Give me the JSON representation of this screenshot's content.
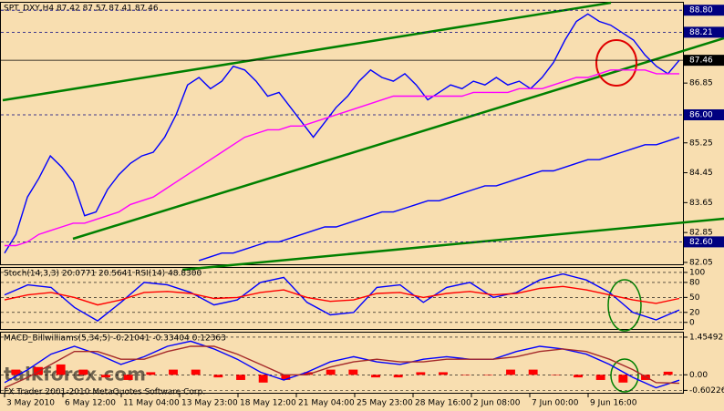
{
  "chart_data": [
    {
      "type": "line",
      "title": "SPT_DXY,H4  87.42 87.57 87.41 87.46",
      "ylim": [
        82.0,
        89.0
      ],
      "yticks": [
        86.85,
        85.25,
        84.45,
        83.65,
        82.85,
        82.05
      ],
      "levels": [
        {
          "value": 88.8,
          "label": "88.80"
        },
        {
          "value": 88.21,
          "label": "88.21"
        },
        {
          "value": 86.0,
          "label": "86.00"
        },
        {
          "value": 82.6,
          "label": "82.60"
        }
      ],
      "last": {
        "value": 87.46,
        "label": "87.46"
      },
      "series": [
        {
          "color": "#0000ff",
          "values": [
            82.3,
            82.8,
            83.8,
            84.3,
            84.9,
            84.6,
            84.2,
            83.3,
            83.4,
            84.0,
            84.4,
            84.7,
            84.9,
            85.0,
            85.4,
            86.0,
            86.8,
            87.0,
            86.7,
            86.9,
            87.3,
            87.2,
            86.9,
            86.5,
            86.6,
            86.2,
            85.8,
            85.4,
            85.8,
            86.2,
            86.5,
            86.9,
            87.2,
            87.0,
            86.9,
            87.1,
            86.8,
            86.4,
            86.6,
            86.8,
            86.7,
            86.9,
            86.8,
            87.0,
            86.8,
            86.9,
            86.7,
            87.0,
            87.4,
            88.0,
            88.5,
            88.7,
            88.5,
            88.4,
            88.2,
            88.0,
            87.6,
            87.3,
            87.1,
            87.46
          ]
        },
        {
          "color": "#ff00ff",
          "values": [
            82.5,
            82.5,
            82.6,
            82.8,
            82.9,
            83.0,
            83.1,
            83.1,
            83.2,
            83.3,
            83.4,
            83.6,
            83.7,
            83.8,
            84.0,
            84.2,
            84.4,
            84.6,
            84.8,
            85.0,
            85.2,
            85.4,
            85.5,
            85.6,
            85.6,
            85.7,
            85.7,
            85.8,
            85.9,
            86.0,
            86.1,
            86.2,
            86.3,
            86.4,
            86.5,
            86.5,
            86.5,
            86.5,
            86.5,
            86.5,
            86.5,
            86.6,
            86.6,
            86.6,
            86.6,
            86.7,
            86.7,
            86.7,
            86.8,
            86.9,
            87.0,
            87.0,
            87.1,
            87.2,
            87.2,
            87.2,
            87.2,
            87.1,
            87.1,
            87.1
          ]
        },
        {
          "color": "#0000ff",
          "values": [
            null,
            null,
            null,
            null,
            null,
            null,
            null,
            null,
            null,
            null,
            null,
            null,
            null,
            null,
            null,
            null,
            null,
            82.1,
            82.2,
            82.3,
            82.3,
            82.4,
            82.5,
            82.6,
            82.6,
            82.7,
            82.8,
            82.9,
            83.0,
            83.0,
            83.1,
            83.2,
            83.3,
            83.4,
            83.4,
            83.5,
            83.6,
            83.7,
            83.7,
            83.8,
            83.9,
            84.0,
            84.1,
            84.1,
            84.2,
            84.3,
            84.4,
            84.5,
            84.5,
            84.6,
            84.7,
            84.8,
            84.8,
            84.9,
            85.0,
            85.1,
            85.2,
            85.2,
            85.3,
            85.4
          ]
        }
      ]
    },
    {
      "type": "line",
      "title": "Stoch(14,3,3) 20.0771 20.5641  RSI(14) 48.8300",
      "ylim": [
        -15,
        109
      ],
      "yticks": [
        100,
        80,
        50,
        20,
        0
      ],
      "series": [
        {
          "color": "#0000ff",
          "values": [
            55,
            75,
            70,
            30,
            3,
            40,
            80,
            75,
            60,
            35,
            45,
            80,
            90,
            40,
            15,
            20,
            70,
            75,
            40,
            70,
            80,
            50,
            60,
            85,
            97,
            85,
            60,
            20,
            5,
            25
          ]
        },
        {
          "color": "#ff0000",
          "values": [
            45,
            55,
            60,
            50,
            35,
            45,
            60,
            62,
            58,
            48,
            50,
            60,
            65,
            50,
            42,
            45,
            58,
            60,
            50,
            58,
            62,
            55,
            58,
            68,
            72,
            65,
            55,
            45,
            38,
            48
          ]
        }
      ]
    },
    {
      "type": "combo",
      "title": "MACD_Billwilliams(5,34,5) -0.21041 -0.33404 0.12363",
      "ylim": [
        -0.73,
        1.63
      ],
      "yticks": [
        {
          "value": 1.45492,
          "label": "1.45492"
        },
        {
          "value": 0,
          "label": "0.00"
        },
        {
          "value": -0.60226,
          "label": "-0.60226"
        }
      ],
      "series": [
        {
          "mark": "bar",
          "color": "#ff0000",
          "values": [
            0.2,
            0.3,
            0.4,
            0.2,
            -0.1,
            -0.2,
            0.1,
            0.2,
            0.2,
            -0.1,
            -0.2,
            -0.3,
            -0.2,
            0.1,
            0.2,
            0.2,
            -0.1,
            -0.1,
            0.1,
            0.1,
            0.0,
            0.0,
            0.2,
            0.2,
            0.0,
            -0.1,
            -0.2,
            -0.3,
            -0.2,
            0.12
          ]
        },
        {
          "mark": "line",
          "color": "#0000ff",
          "values": [
            -0.3,
            0.2,
            0.8,
            1.1,
            0.8,
            0.4,
            0.7,
            1.1,
            1.3,
            1.0,
            0.6,
            0.1,
            -0.2,
            0.1,
            0.5,
            0.7,
            0.5,
            0.4,
            0.6,
            0.7,
            0.6,
            0.6,
            0.9,
            1.1,
            1.0,
            0.8,
            0.4,
            -0.1,
            -0.5,
            -0.21
          ]
        },
        {
          "mark": "line",
          "color": "#a52a2a",
          "values": [
            -0.5,
            -0.1,
            0.4,
            0.9,
            0.9,
            0.6,
            0.6,
            0.9,
            1.1,
            1.1,
            0.8,
            0.4,
            0.0,
            0.0,
            0.3,
            0.5,
            0.6,
            0.5,
            0.5,
            0.6,
            0.6,
            0.6,
            0.7,
            0.9,
            1.0,
            0.9,
            0.6,
            0.2,
            -0.3,
            -0.33
          ]
        }
      ]
    }
  ],
  "time_axis": {
    "labels": [
      "3 May 2010",
      "6 May 12:00",
      "11 May 04:00",
      "13 May 23:00",
      "18 May 12:00",
      "21 May 04:00",
      "25 May 23:00",
      "28 May 16:00",
      "2 Jun 08:00",
      "7 Jun 00:00",
      "9 Jun 16:00"
    ]
  },
  "watermark": {
    "site": "taikforex.com",
    "copyright": "FX Trader 2001-2010 MetaQuotes Software Corp."
  }
}
